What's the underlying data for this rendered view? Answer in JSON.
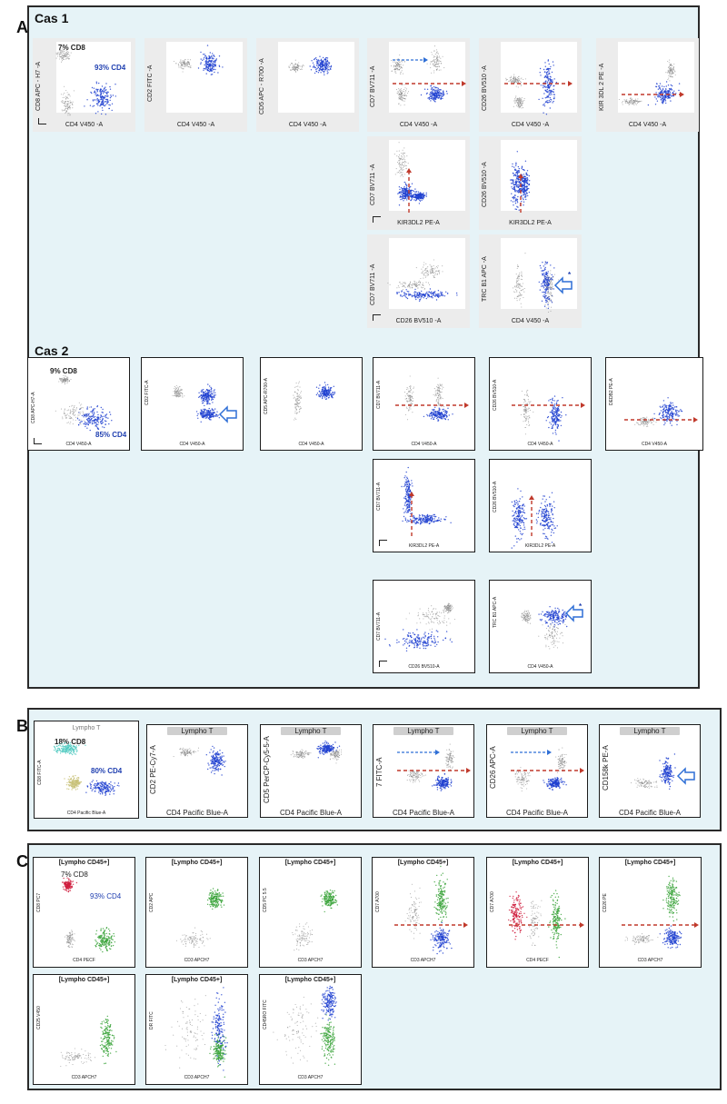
{
  "panels": {
    "A": {
      "letter": "A",
      "cases": [
        {
          "title": "Cas 1",
          "plots": [
            {
              "x": "CD4 V450 -A",
              "y": "CD8 APC - H7 -A",
              "notes": [
                "7% CD8",
                "93% CD4"
              ]
            },
            {
              "x": "CD4 V450 -A",
              "y": "CD2 FITC -A",
              "notes": []
            },
            {
              "x": "CD4 V450 -A",
              "y": "CD5 APC - R700 -A",
              "notes": []
            },
            {
              "x": "CD4 V450 -A",
              "y": "CD7 BV711 -A",
              "notes": []
            },
            {
              "x": "CD4 V450 -A",
              "y": "CD26 BV510 -A",
              "notes": []
            },
            {
              "x": "CD4 V450 -A",
              "y": "KIR 3DL 2 PE -A",
              "notes": []
            },
            {
              "x": "KIR3DL2 PE-A",
              "y": "CD7 BV711 -A",
              "notes": []
            },
            {
              "x": "KIR3DL2 PE-A",
              "y": "CD26 BV510 -A",
              "notes": []
            },
            {
              "x": "CD26 BV510 -A",
              "y": "CD7 BV711 -A",
              "notes": []
            },
            {
              "x": "CD4 V450 -A",
              "y": "TRC B1 APC -A",
              "notes": [
                "*"
              ]
            }
          ]
        },
        {
          "title": "Cas 2",
          "plots": [
            {
              "x": "CD4 V450-A",
              "y": "CD8 APC-H7-A",
              "notes": [
                "9% CD8",
                "85% CD4"
              ]
            },
            {
              "x": "CD4 V450-A",
              "y": "CD2 FITC-A",
              "notes": []
            },
            {
              "x": "CD4 V450-A",
              "y": "CD5 APC-R700-A",
              "notes": []
            },
            {
              "x": "CD4 V450-A",
              "y": "CD7 BV711-A",
              "notes": []
            },
            {
              "x": "CD4 V450-A",
              "y": "CD26 BV510-A",
              "notes": []
            },
            {
              "x": "CD4 V450-A",
              "y": "DEDB2 PE-A",
              "notes": []
            },
            {
              "x": "KIR3DL2 PE-A",
              "y": "CD7 BV711-A",
              "notes": []
            },
            {
              "x": "KIR3DL2 PE-A",
              "y": "CD26 BV510-A",
              "notes": []
            },
            {
              "x": "CD26 BV510-A",
              "y": "CD7 BV711-A",
              "notes": []
            },
            {
              "x": "CD4 V450-A",
              "y": "TRC B1 APC-A",
              "notes": [
                "*"
              ]
            }
          ]
        }
      ]
    },
    "B": {
      "letter": "B",
      "plots": [
        {
          "header": "Lympho T",
          "x": "CD4 Pacific Blue-A",
          "y": "CD8 FITC-A",
          "notes": [
            "18% CD8",
            "80% CD4"
          ]
        },
        {
          "header": "Lympho T",
          "x": "CD4 Pacific Blue-A",
          "y": "CD2 PE-Cy7-A",
          "notes": []
        },
        {
          "header": "Lympho T",
          "x": "CD4 Pacific Blue-A",
          "y": "CD5 PerCP-Cy5-5-A",
          "notes": []
        },
        {
          "header": "Lympho T",
          "x": "CD4 Pacific Blue-A",
          "y": "7 FITC-A",
          "notes": []
        },
        {
          "header": "Lympho T",
          "x": "CD4 Pacific Blue-A",
          "y": "CD26 APC-A",
          "notes": []
        },
        {
          "header": "Lympho T",
          "x": "CD4 Pacific Blue-A",
          "y": "CD158k PE-A",
          "notes": []
        }
      ]
    },
    "C": {
      "letter": "C",
      "plots": [
        {
          "header": "[Lympho CD45+]",
          "x": "CD4 PECF",
          "y": "CD8 PC7",
          "notes": [
            "7% CD8",
            "93% CD4"
          ]
        },
        {
          "header": "[Lympho CD45+]",
          "x": "CD3 APCH7",
          "y": "CD2 APC",
          "notes": []
        },
        {
          "header": "[Lympho CD45+]",
          "x": "CD3 APCH7",
          "y": "CD5 PC 5.5",
          "notes": []
        },
        {
          "header": "[Lympho CD45+]",
          "x": "CD3 APCH7",
          "y": "CD7 A700",
          "notes": []
        },
        {
          "header": "[Lympho CD45+]",
          "x": "CD4 PECF",
          "y": "CD7 A700",
          "notes": []
        },
        {
          "header": "[Lympho CD45+]",
          "x": "CD3 APCH7",
          "y": "CD26 PE",
          "notes": []
        },
        {
          "header": "[Lympho CD45+]",
          "x": "CD3 APCH7",
          "y": "CD25 V450",
          "notes": []
        },
        {
          "header": "[Lympho CD45+]",
          "x": "CD3 APCH7",
          "y": "DR FITC",
          "notes": []
        },
        {
          "header": "[Lympho CD45+]",
          "x": "CD3 APCH7",
          "y": "CD45RO FITC",
          "notes": []
        }
      ]
    }
  },
  "colors": {
    "panel_bg": "#e6f3f7",
    "blue_cells": "#1f3fd0",
    "gray_cells": "#8a8a8a",
    "red_arrow": "#c0392b",
    "blue_arrow": "#2f6fd6",
    "green_cells": "#3aa33a",
    "red_cells": "#d02040",
    "cyan_cells": "#4ec9c0"
  }
}
